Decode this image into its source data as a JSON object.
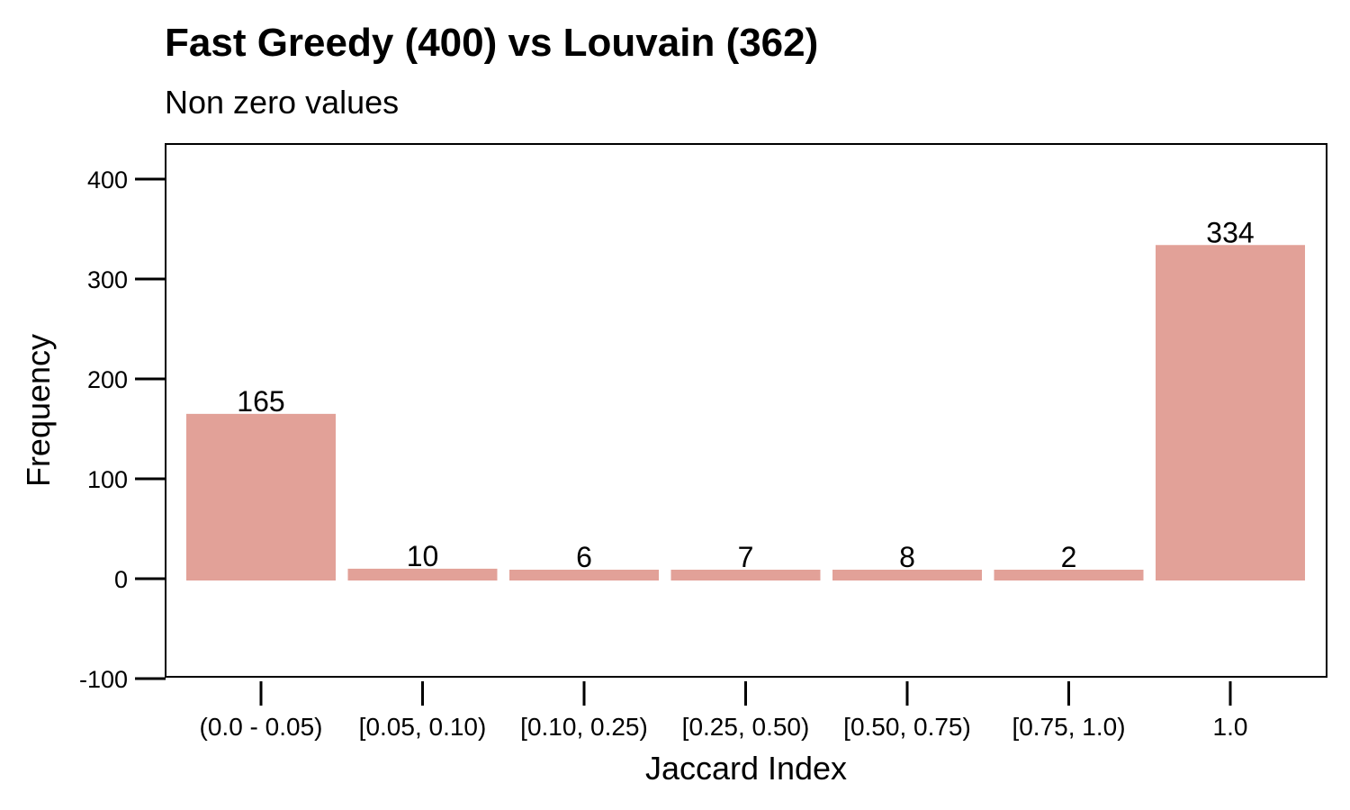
{
  "chart_data": {
    "type": "bar",
    "title": "Fast Greedy (400) vs Louvain (362)",
    "subtitle": "Non zero values",
    "xlabel": "Jaccard Index",
    "ylabel": "Frequency",
    "categories": [
      "(0.0 - 0.05)",
      "[0.05, 0.10)",
      "[0.10, 0.25)",
      "[0.25, 0.50)",
      "[0.50, 0.75)",
      "[0.75, 1.0)",
      "1.0"
    ],
    "values": [
      165,
      10,
      6,
      7,
      8,
      2,
      334
    ],
    "data_labels": [
      "165",
      "10",
      "6",
      "7",
      "8",
      "2",
      "334"
    ],
    "yticks": [
      -100,
      0,
      100,
      200,
      300,
      400
    ],
    "ytick_labels": [
      "-100",
      "0",
      "100",
      "200",
      "300",
      "400"
    ],
    "ylim": [
      -100,
      434
    ],
    "grid": false,
    "bar_color": "#e2a198",
    "axis_color": "#000000"
  }
}
